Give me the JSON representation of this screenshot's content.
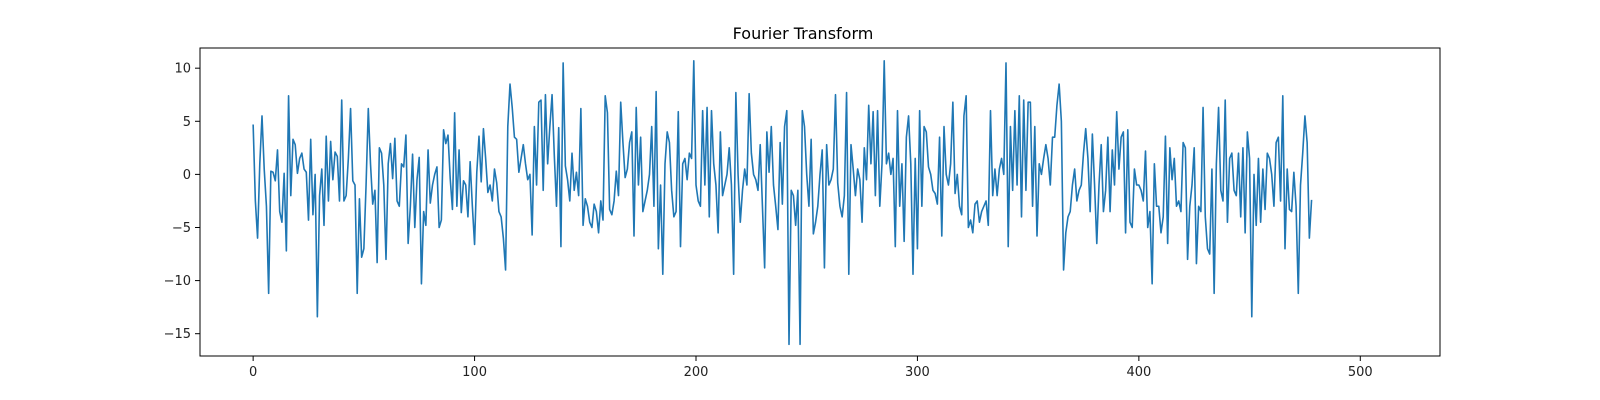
{
  "chart_data": {
    "type": "line",
    "title": "Fourier Transform",
    "xlabel": "",
    "ylabel": "",
    "xlim": [
      -24,
      536
    ],
    "ylim": [
      -17.1,
      11.9
    ],
    "xticks": [
      0,
      100,
      200,
      300,
      400,
      500
    ],
    "yticks": [
      10,
      5,
      0,
      -5,
      -10,
      -15
    ],
    "grid": false,
    "line_color": "#1f77b4",
    "series": [
      {
        "x_start": 0,
        "x_step": 1,
        "values": [
          4.7,
          -2.5,
          -6.0,
          1.0,
          5.5,
          0.5,
          -3.0,
          -11.2,
          0.3,
          0.2,
          -0.6,
          2.3,
          -3.5,
          -4.5,
          0.1,
          -7.2,
          7.4,
          -2.0,
          3.3,
          2.8,
          0.1,
          1.5,
          2.0,
          0.5,
          0.2,
          -4.3,
          3.3,
          -3.8,
          0.0,
          -13.4,
          -2.0,
          0.5,
          -4.8,
          3.6,
          -2.5,
          3.1,
          -0.5,
          2.1,
          1.7,
          -2.5,
          7.0,
          -2.5,
          -2.0,
          1.5,
          6.2,
          -0.6,
          -1.0,
          -11.2,
          -2.3,
          -7.8,
          -7.0,
          -1.0,
          6.2,
          1.0,
          -2.8,
          -1.5,
          -8.3,
          2.5,
          2.0,
          -1.0,
          -8.0,
          1.0,
          2.9,
          -0.4,
          3.4,
          -2.5,
          -3.0,
          1.0,
          0.7,
          3.7,
          -6.5,
          -3.0,
          1.9,
          -5.0,
          -0.5,
          1.6,
          -10.3,
          -3.5,
          -4.8,
          2.3,
          -2.7,
          -1.0,
          0.0,
          0.7,
          -5.0,
          -4.3,
          4.2,
          2.9,
          3.7,
          -0.4,
          -3.3,
          5.8,
          -3.0,
          2.3,
          -3.6,
          -0.6,
          -1.0,
          -4.0,
          1.2,
          -3.0,
          -6.6,
          0.2,
          3.6,
          -0.7,
          4.3,
          1.5,
          -1.7,
          -1.0,
          -2.5,
          0.5,
          -0.8,
          -3.5,
          -4.0,
          -6.0,
          -9.0,
          4.5,
          8.5,
          6.3,
          3.5,
          3.3,
          0.2,
          1.5,
          2.8,
          1.0,
          -0.5,
          0.0,
          -5.7,
          4.5,
          -1.0,
          6.8,
          7.0,
          -1.5,
          7.5,
          1.0,
          4.5,
          7.5,
          1.8,
          -3.0,
          4.4,
          -6.8,
          10.5,
          0.8,
          -0.5,
          -2.5,
          2.0,
          -1.5,
          0.2,
          -2.0,
          6.2,
          -4.8,
          -2.3,
          -3.0,
          -4.5,
          -5.0,
          -2.8,
          -3.5,
          -5.5,
          -2.5,
          -4.3,
          7.4,
          5.8,
          -3.3,
          -3.8,
          -2.5,
          0.3,
          -2.0,
          6.8,
          3.0,
          -0.3,
          0.5,
          3.0,
          4.0,
          -5.8,
          6.3,
          -1.0,
          3.5,
          -3.5,
          -2.5,
          -1.5,
          0.0,
          4.5,
          -3.0,
          7.8,
          -7.0,
          -1.0,
          -9.4,
          1.0,
          4.0,
          3.0,
          -1.5,
          -4.0,
          -3.5,
          5.9,
          -6.8,
          1.0,
          1.5,
          -0.5,
          2.0,
          1.5,
          10.7,
          -1.0,
          -2.5,
          -3.0,
          6.0,
          -1.0,
          6.3,
          -4.0,
          6.0,
          1.0,
          -1.0,
          -5.5,
          4.0,
          -2.0,
          -1.0,
          0.0,
          2.5,
          -1.0,
          -9.4,
          7.7,
          0.0,
          -4.5,
          -1.5,
          0.5,
          -1.0,
          7.6,
          2.0,
          0.0,
          -0.5,
          -1.5,
          2.8,
          -3.0,
          -8.8,
          4.0,
          0.2,
          4.5,
          -1.0,
          -3.0,
          -5.2,
          3.0,
          -2.8,
          4.5,
          6.0,
          -16.0,
          -1.5,
          -2.0,
          -4.8,
          -1.5,
          -16.0,
          6.0,
          4.5,
          0.0,
          -3.0,
          3.3,
          -5.6,
          -4.5,
          -3.0,
          0.0,
          2.3,
          -8.8,
          2.8,
          -1.0,
          -0.5,
          0.5,
          7.5,
          -0.8,
          -3.0,
          -4.0,
          -2.0,
          7.7,
          -9.4,
          2.8,
          0.5,
          -2.0,
          0.5,
          -0.5,
          -4.5,
          2.5,
          -0.5,
          6.5,
          1.0,
          5.9,
          -2.0,
          6.0,
          -3.0,
          1.0,
          10.7,
          1.0,
          2.0,
          0.0,
          1.5,
          -6.8,
          6.0,
          -3.0,
          1.0,
          -6.3,
          3.5,
          5.5,
          1.0,
          -9.4,
          1.5,
          -7.0,
          6.0,
          -3.0,
          4.5,
          4.0,
          0.7,
          0.0,
          -1.5,
          -1.8,
          -2.8,
          3.5,
          -5.8,
          4.5,
          0.0,
          -1.0,
          1.0,
          6.8,
          -1.8,
          0.0,
          -3.0,
          -3.8,
          5.5,
          7.4,
          -5.0,
          -4.3,
          -5.5,
          -2.8,
          -2.5,
          -4.5,
          -3.5,
          -3.0,
          -2.5,
          -4.8,
          6.0,
          -2.0,
          0.5,
          -2.0,
          0.5,
          1.5,
          0.0,
          10.5,
          -6.8,
          4.5,
          -1.5,
          6.0,
          -1.0,
          7.4,
          -4.0,
          7.0,
          -1.5,
          6.8,
          6.8,
          -3.0,
          4.5,
          -5.8,
          1.0,
          0.0,
          1.5,
          2.8,
          1.5,
          -1.0,
          3.5,
          3.5,
          6.5,
          8.5,
          5.0,
          -9.0,
          -5.5,
          -4.0,
          -3.5,
          -1.0,
          0.5,
          -2.5,
          -1.5,
          -1.0,
          2.0,
          4.3,
          1.5,
          -3.5,
          3.8,
          -1.0,
          -6.5,
          -1.0,
          2.8,
          -3.5,
          -1.5,
          3.5,
          -3.5,
          2.3,
          -1.0,
          5.9,
          0.5,
          3.5,
          4.0,
          -5.5,
          4.2,
          -4.5,
          -5.0,
          0.5,
          -1.0,
          -1.0,
          -1.5,
          -2.5,
          2.2,
          -5.0,
          -3.5,
          -10.3,
          1.0,
          -3.0,
          -3.0,
          -5.5,
          -4.0,
          3.6,
          -6.5,
          2.5,
          -0.5,
          1.5,
          -3.0,
          -2.5,
          -3.5,
          3.0,
          2.5,
          -8.0,
          -3.0,
          -1.0,
          2.5,
          -8.4,
          -3.0,
          -3.5,
          6.3,
          -4.0,
          -7.0,
          -7.5,
          0.5,
          -11.2,
          1.0,
          6.3,
          -1.5,
          -2.5,
          7.0,
          -4.5,
          1.5,
          2.0,
          -1.5,
          -2.0,
          2.0,
          -4.0,
          2.5,
          -5.5,
          4.0,
          1.5,
          -13.4,
          0.0,
          -4.8,
          1.5,
          -4.5,
          0.5,
          -3.3,
          2.0,
          1.5,
          0.0,
          -3.0,
          3.0,
          3.5,
          -2.5,
          7.4,
          -7.0,
          0.5,
          -3.3,
          -3.5,
          0.2,
          -3.0,
          -11.2,
          -1.0,
          2.0,
          5.5,
          3.0,
          -6.0,
          -2.4
        ]
      }
    ]
  }
}
